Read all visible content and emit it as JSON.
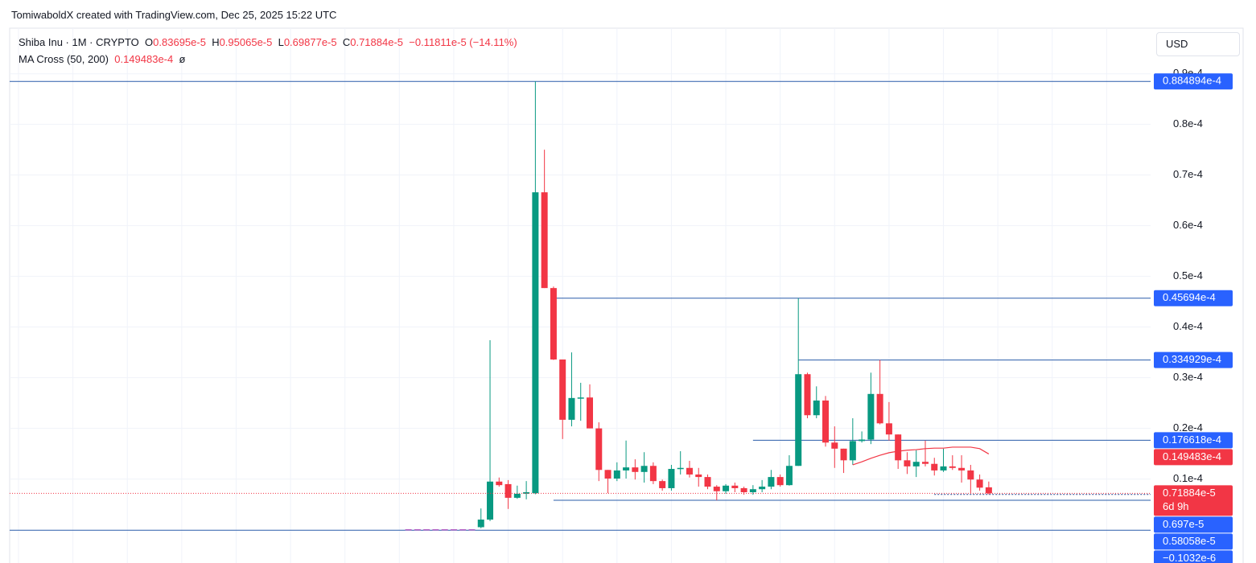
{
  "header": {
    "credit": "TomiwaboldX created with TradingView.com, Dec 25, 2025 15:22 UTC"
  },
  "chart_data": {
    "type": "candlestick",
    "legend": {
      "symbol": "Shiba Inu · 1M · CRYPTO",
      "ohlc": [
        {
          "key": "O",
          "value": "0.83695e-5"
        },
        {
          "key": "H",
          "value": "0.95065e-5"
        },
        {
          "key": "L",
          "value": "0.69877e-5"
        },
        {
          "key": "C",
          "value": "0.71884e-5"
        }
      ],
      "change": "−0.11811e-5 (−14.11%)"
    },
    "currency": "USD",
    "countdown": "6d 9h",
    "open": [
      1e-07,
      1e-07,
      1e-07,
      1e-07,
      1e-07,
      1e-07,
      1e-07,
      1e-07,
      5e-07,
      2e-06,
      9.5e-06,
      9e-06,
      6.3e-06,
      7.1e-06,
      7.2e-06,
      6.66e-05,
      4.77e-05,
      3.36e-05,
      2.17e-05,
      2.6e-05,
      2.61e-05,
      2e-05,
      1.18e-05,
      1.01e-05,
      1.17e-05,
      1.23e-05,
      1.14e-05,
      1.26e-05,
      9.6e-06,
      8.2e-06,
      1.2e-05,
      1.22e-05,
      1.09e-05,
      1.04e-05,
      8.5e-06,
      7.6e-06,
      8.7e-06,
      8.2e-06,
      7.4e-06,
      8e-06,
      8.5e-06,
      1.04e-05,
      8.8e-06,
      1.26e-05,
      3.07e-05,
      2.26e-05,
      2.55e-05,
      1.72e-05,
      1.6e-05,
      1.37e-05,
      1.75e-05,
      1.78e-05,
      2.68e-05,
      2.1e-05,
      1.88e-05,
      1.37e-05,
      1.25e-05,
      1.34e-05,
      1.3e-05,
      1.17e-05,
      1.25e-05,
      1.22e-05,
      1.17e-05,
      9.9e-06,
      8.3695e-06
    ],
    "high": [
      1e-07,
      1e-07,
      1e-07,
      1e-07,
      1e-07,
      1e-07,
      1e-07,
      1e-07,
      4.2e-06,
      3.74e-05,
      1.03e-05,
      9.8e-06,
      8.7e-06,
      9.6e-06,
      8.85e-05,
      7.5e-05,
      4.8e-05,
      3.36e-05,
      3.5e-05,
      2.9e-05,
      2.87e-05,
      2.12e-05,
      1.18e-05,
      1.33e-05,
      1.76e-05,
      1.39e-05,
      1.53e-05,
      1.33e-05,
      9.9e-06,
      1.28e-05,
      1.55e-05,
      1.36e-05,
      1.22e-05,
      1.09e-05,
      8.8e-06,
      9e-06,
      9.3e-06,
      8.5e-06,
      8.8e-06,
      9.8e-06,
      1.18e-05,
      1.09e-05,
      1.47e-05,
      4.57e-05,
      3.1e-05,
      2.83e-05,
      2.64e-05,
      2.04e-05,
      1.6e-05,
      2.2e-05,
      1.94e-05,
      3.1e-05,
      3.35e-05,
      2.52e-05,
      1.88e-05,
      1.53e-05,
      1.57e-05,
      1.76e-05,
      1.42e-05,
      1.6e-05,
      1.47e-05,
      1.47e-05,
      1.28e-05,
      1.09e-05,
      9.5065e-06
    ],
    "low": [
      1e-07,
      1e-07,
      1e-07,
      1e-07,
      1e-07,
      1e-07,
      1e-07,
      1e-07,
      3e-07,
      1.7e-06,
      8.5e-06,
      4.1e-06,
      6.1e-06,
      6e-06,
      7e-06,
      4.77e-05,
      3.35e-05,
      1.79e-05,
      2.04e-05,
      2.15e-05,
      2e-05,
      9.6e-06,
      7.2e-06,
      9.6e-06,
      1.01e-05,
      9.9e-06,
      9.3e-06,
      9e-06,
      7.7e-06,
      7.7e-06,
      1.09e-05,
      1.03e-05,
      8.5e-06,
      8e-06,
      5.8e-06,
      7.1e-06,
      7.4e-06,
      6.9e-06,
      6.9e-06,
      7.4e-06,
      8e-06,
      8.5e-06,
      8.7e-06,
      1.26e-05,
      2.2e-05,
      2.2e-05,
      1.64e-05,
      1.22e-05,
      1.12e-05,
      1.28e-05,
      1.72e-05,
      1.69e-05,
      2.08e-05,
      1.76e-05,
      1.2e-05,
      1.1e-05,
      1.04e-05,
      1.25e-05,
      1.07e-05,
      1.14e-05,
      1.18e-05,
      9.3e-06,
      7.2e-06,
      7.7e-06,
      6.9877e-06
    ],
    "close": [
      1e-07,
      1e-07,
      1e-07,
      1e-07,
      1e-07,
      1e-07,
      1e-07,
      1e-07,
      2e-06,
      9.5e-06,
      8.8e-06,
      6.3e-06,
      7.1e-06,
      7.4e-06,
      6.66e-05,
      4.77e-05,
      3.36e-05,
      2.17e-05,
      2.6e-05,
      2.61e-05,
      2e-05,
      1.18e-05,
      1.01e-05,
      1.17e-05,
      1.23e-05,
      1.14e-05,
      1.26e-05,
      9.6e-06,
      8.2e-06,
      1.2e-05,
      1.22e-05,
      1.09e-05,
      1.04e-05,
      8.5e-06,
      7.6e-06,
      8.7e-06,
      8.2e-06,
      7.4e-06,
      8e-06,
      8.5e-06,
      1.04e-05,
      8.8e-06,
      1.26e-05,
      3.07e-05,
      2.26e-05,
      2.55e-05,
      1.72e-05,
      1.6e-05,
      1.37e-05,
      1.75e-05,
      1.78e-05,
      2.68e-05,
      2.1e-05,
      1.88e-05,
      1.37e-05,
      1.25e-05,
      1.34e-05,
      1.3e-05,
      1.17e-05,
      1.25e-05,
      1.22e-05,
      1.17e-05,
      9.9e-06,
      8.3e-06,
      7.1884e-06
    ],
    "up_color": "#089981",
    "down_color": "#f23645",
    "flat_color": "#b35fc4",
    "ma": {
      "name": "MA Cross (50, 200)",
      "value_label": "0.149483e-4",
      "symbol": "ø",
      "color": "#f23645",
      "values": [
        null,
        null,
        null,
        null,
        null,
        null,
        null,
        null,
        null,
        null,
        null,
        null,
        null,
        null,
        null,
        null,
        null,
        null,
        null,
        null,
        null,
        null,
        null,
        null,
        null,
        null,
        null,
        null,
        null,
        null,
        null,
        null,
        null,
        null,
        null,
        null,
        null,
        null,
        null,
        null,
        null,
        null,
        null,
        null,
        null,
        null,
        null,
        null,
        null,
        1.28e-05,
        1.34e-05,
        1.41e-05,
        1.47e-05,
        1.52e-05,
        1.55e-05,
        1.57e-05,
        1.58e-05,
        1.6e-05,
        1.61e-05,
        1.61e-05,
        1.63e-05,
        1.63e-05,
        1.63e-05,
        1.6e-05,
        1.49483e-05
      ]
    },
    "hlines": [
      {
        "value": 8.84894e-05,
        "label": "0.884894e-4"
      },
      {
        "value": 4.5694e-05,
        "label": "0.45694e-4",
        "start": 16
      },
      {
        "value": 3.34929e-05,
        "label": "0.334929e-4",
        "start": 43
      },
      {
        "value": 1.76618e-05,
        "label": "0.176618e-4",
        "start": 38
      },
      {
        "value": 6.97e-06,
        "label": "0.697e-5",
        "start": 58,
        "dotted": true
      },
      {
        "value": 5.8058e-06,
        "label": "0.58058e-5",
        "start": 16
      },
      {
        "value": -1.032e-07,
        "label": "−0.1032e-6"
      }
    ],
    "line_color": "#2a5caa",
    "label_color": "#2962ff",
    "ylim": [
      -6.57e-06,
      9.9e-05
    ],
    "yticks": [
      {
        "value": 1e-05,
        "label": "0.1e-4"
      },
      {
        "value": 2e-05,
        "label": "0.2e-4"
      },
      {
        "value": 3e-05,
        "label": "0.3e-4"
      },
      {
        "value": 4e-05,
        "label": "0.4e-4"
      },
      {
        "value": 5e-05,
        "label": "0.5e-4"
      },
      {
        "value": 6e-05,
        "label": "0.6e-4"
      },
      {
        "value": 7e-05,
        "label": "0.7e-4"
      },
      {
        "value": 8e-05,
        "label": "0.8e-4"
      },
      {
        "value": 9e-05,
        "label": "0.9e-4"
      }
    ],
    "grid": true
  }
}
